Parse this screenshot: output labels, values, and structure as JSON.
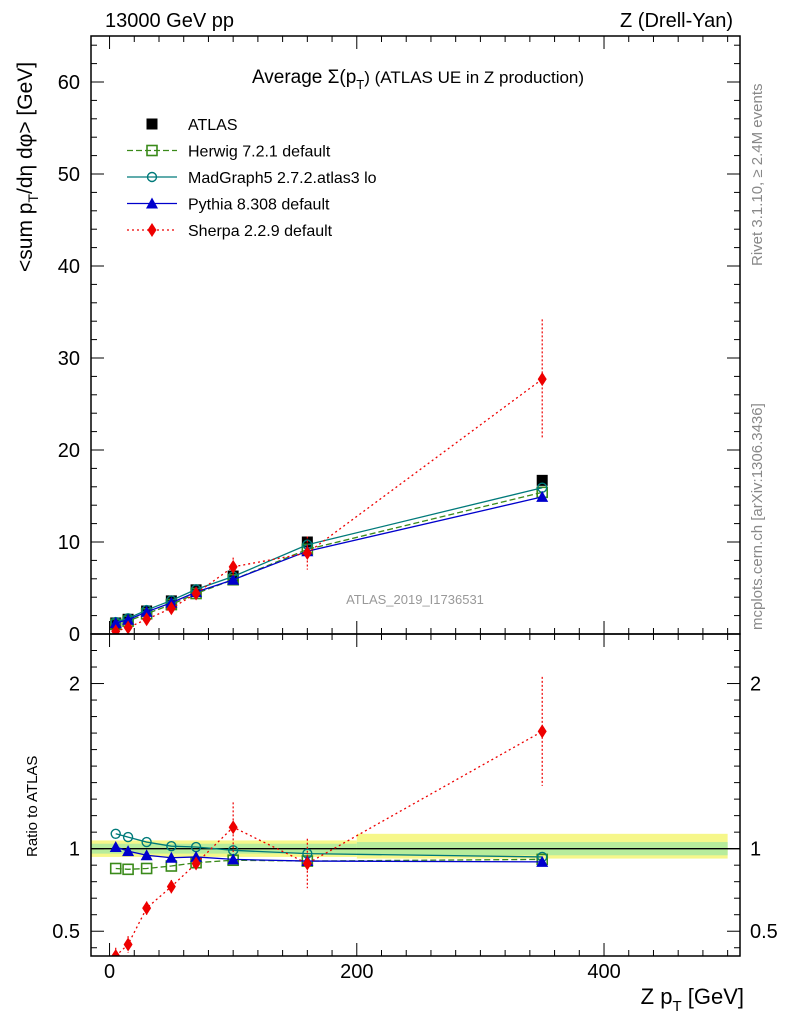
{
  "header": {
    "left": "13000 GeV pp",
    "right": "Z (Drell-Yan)"
  },
  "side_labels": {
    "rivet": "Rivet 3.1.10, ≥ 2.4M events",
    "mcplots": "mcplots.cern.ch [arXiv:1306.3436]"
  },
  "watermark": "ATLAS_2019_I1736531",
  "chart_data": [
    {
      "type": "scatter",
      "panel": "main",
      "title_prefix": "Average Σ(p",
      "title_sub": "T",
      "title_suffix": ") (ATLAS UE in Z production)",
      "ylabel_main": "<sum p",
      "ylabel_sub": "T",
      "ylabel_rest": "/dη dφ> [GeV]",
      "xlim": [
        -15,
        510
      ],
      "ylim": [
        0,
        65
      ],
      "yticks": [
        0,
        10,
        20,
        30,
        40,
        50,
        60
      ],
      "ytick_labels": [
        "0",
        "10",
        "20",
        "30",
        "40",
        "50",
        "60"
      ],
      "legend_position": "top-left",
      "series": [
        {
          "name": "ATLAS",
          "color": "#000000",
          "marker": "square-filled",
          "line": "none",
          "x": [
            5,
            15,
            30,
            50,
            70,
            100,
            160,
            350
          ],
          "y": [
            1.2,
            1.6,
            2.5,
            3.6,
            4.8,
            6.3,
            10.0,
            16.7
          ]
        },
        {
          "name": "Herwig 7.2.1 default",
          "color": "#3a8a1a",
          "marker": "square-open",
          "line": "dashed",
          "x": [
            5,
            15,
            30,
            50,
            70,
            100,
            160,
            350
          ],
          "y": [
            1.05,
            1.4,
            2.2,
            3.2,
            4.4,
            5.9,
            9.2,
            15.4
          ]
        },
        {
          "name": "MadGraph5 2.7.2.atlas3 lo",
          "color": "#007a7a",
          "marker": "circle-open",
          "line": "solid",
          "x": [
            5,
            15,
            30,
            50,
            70,
            100,
            160,
            350
          ],
          "y": [
            1.3,
            1.7,
            2.6,
            3.65,
            4.85,
            6.25,
            9.7,
            15.9
          ]
        },
        {
          "name": "Pythia 8.308 default",
          "color": "#0000cc",
          "marker": "triangle-filled",
          "line": "solid",
          "x": [
            5,
            15,
            30,
            50,
            70,
            100,
            160,
            350
          ],
          "y": [
            1.2,
            1.55,
            2.4,
            3.4,
            4.55,
            5.9,
            9.0,
            14.9
          ]
        },
        {
          "name": "Sherpa 2.2.9 default",
          "color": "#ee0000",
          "marker": "diamond-filled",
          "line": "dotted",
          "x": [
            5,
            15,
            30,
            50,
            70,
            100,
            160,
            350
          ],
          "y": [
            0.3,
            0.7,
            1.6,
            2.8,
            4.4,
            7.3,
            8.8,
            27.7
          ],
          "yerr": [
            0.1,
            0.15,
            0.2,
            0.3,
            0.4,
            1.0,
            1.8,
            6.5
          ]
        }
      ]
    },
    {
      "type": "scatter",
      "panel": "ratio",
      "ylabel": "Ratio to ATLAS",
      "xlabel_main": "Z p",
      "xlabel_sub": "T",
      "xlabel_rest": " [GeV]",
      "xlim": [
        -15,
        510
      ],
      "ylim": [
        0.35,
        2.3
      ],
      "xticks": [
        0,
        200,
        400
      ],
      "xtick_labels": [
        "0",
        "200",
        "400"
      ],
      "yticks": [
        0.5,
        1,
        2
      ],
      "ytick_labels": [
        "0.5",
        "1",
        "2"
      ],
      "band_inner": [
        {
          "x0": -15,
          "x1": 200,
          "lo": 0.97,
          "hi": 1.03
        },
        {
          "x0": 200,
          "x1": 500,
          "lo": 0.96,
          "hi": 1.04
        }
      ],
      "band_outer": [
        {
          "x0": -15,
          "x1": 200,
          "lo": 0.95,
          "hi": 1.05
        },
        {
          "x0": 200,
          "x1": 500,
          "lo": 0.94,
          "hi": 1.09
        }
      ],
      "series": [
        {
          "name": "Herwig 7.2.1 default",
          "color": "#3a8a1a",
          "marker": "square-open",
          "line": "dashed",
          "x": [
            5,
            15,
            30,
            50,
            70,
            100,
            160,
            350
          ],
          "y": [
            0.88,
            0.875,
            0.88,
            0.895,
            0.915,
            0.93,
            0.925,
            0.935
          ]
        },
        {
          "name": "MadGraph5 2.7.2.atlas3 lo",
          "color": "#007a7a",
          "marker": "circle-open",
          "line": "solid",
          "x": [
            5,
            15,
            30,
            50,
            70,
            100,
            160,
            350
          ],
          "y": [
            1.09,
            1.07,
            1.04,
            1.015,
            1.01,
            0.99,
            0.97,
            0.95
          ]
        },
        {
          "name": "Pythia 8.308 default",
          "color": "#0000cc",
          "marker": "triangle-filled",
          "line": "solid",
          "x": [
            5,
            15,
            30,
            50,
            70,
            100,
            160,
            350
          ],
          "y": [
            1.01,
            0.985,
            0.96,
            0.945,
            0.95,
            0.935,
            0.925,
            0.92
          ]
        },
        {
          "name": "Sherpa 2.2.9 default",
          "color": "#ee0000",
          "marker": "diamond-filled",
          "line": "dotted",
          "x": [
            5,
            15,
            30,
            50,
            70,
            100,
            160,
            350
          ],
          "y": [
            0.35,
            0.42,
            0.64,
            0.77,
            0.91,
            1.13,
            0.91,
            1.71
          ],
          "yerr": [
            0.05,
            0.05,
            0.04,
            0.04,
            0.03,
            0.15,
            0.15,
            0.33
          ]
        }
      ]
    }
  ]
}
